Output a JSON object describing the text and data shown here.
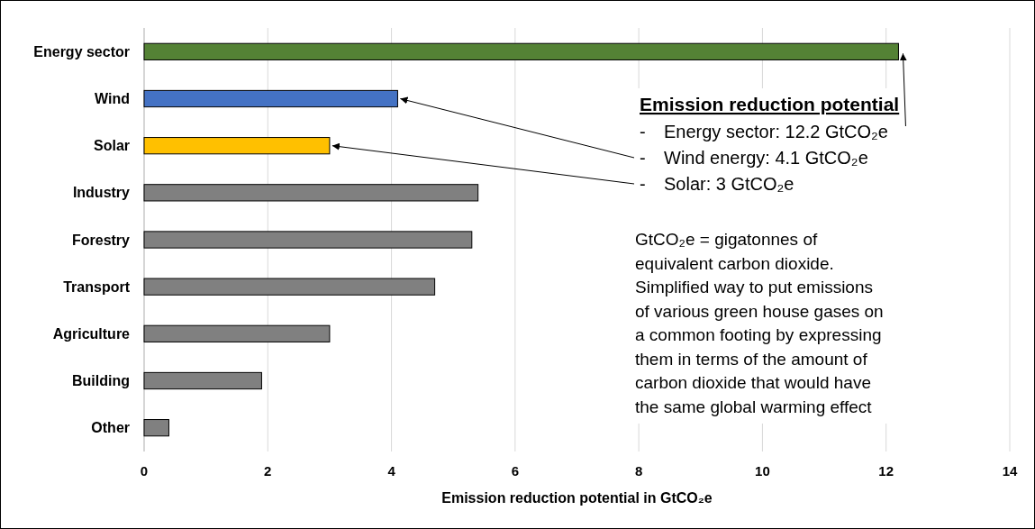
{
  "chart_data": {
    "type": "bar",
    "orientation": "horizontal",
    "xlabel": "Emission reduction potential in GtCO₂e",
    "categories": [
      "Energy sector",
      "Wind",
      "Solar",
      "Industry",
      "Forestry",
      "Transport",
      "Agriculture",
      "Building",
      "Other"
    ],
    "values": [
      12.2,
      4.1,
      3.0,
      5.4,
      5.3,
      4.7,
      3.0,
      1.9,
      0.4
    ],
    "colors": [
      "#548235",
      "#4472c4",
      "#ffc000",
      "#808080",
      "#808080",
      "#808080",
      "#808080",
      "#808080",
      "#808080"
    ],
    "xlim": [
      0,
      14
    ],
    "xticks": [
      0,
      2,
      4,
      6,
      8,
      10,
      12,
      14
    ],
    "grid": "x",
    "annotations": [
      "Emission reduction potential",
      {
        "text": "- Energy sector: 12.2 GtCO₂e",
        "x": 12.2,
        "y": "Energy sector"
      },
      {
        "text": "- Wind energy: 4.1 GtCO₂e",
        "x": 4.1,
        "y": "Wind"
      },
      {
        "text": "- Solar: 3 GtCO₂e",
        "x": 3,
        "y": "Solar"
      },
      "GtCO₂e = gigatonnes of equivalent carbon dioxide. Simplified way to put emissions of various green house gases on a common footing by expressing them in terms of the amount of carbon dioxide that would have the same global warming effect"
    ]
  }
}
